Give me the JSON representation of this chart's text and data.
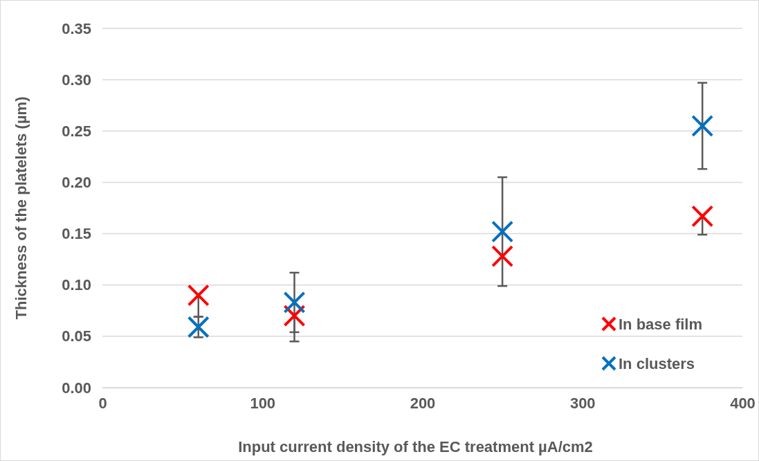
{
  "chart_data": {
    "type": "scatter",
    "xlabel": "Input current density of the EC treatment µA/cm2",
    "ylabel": "Thickness of the platelets  (µm)",
    "x": [
      60,
      120,
      250,
      375
    ],
    "series": [
      {
        "name": "In base film",
        "color": "#ff0000",
        "values": [
          0.09,
          0.07,
          0.128,
          0.167
        ],
        "errors": [
          [
            0.069,
            0.09
          ],
          [
            0.045,
            0.07
          ],
          null,
          [
            0.149,
            0.167
          ]
        ]
      },
      {
        "name": "In clusters",
        "color": "#0070c0",
        "values": [
          0.059,
          0.083,
          0.152,
          0.255
        ],
        "errors": [
          0.01,
          0.029,
          0.053,
          0.042
        ]
      }
    ],
    "xlim": [
      0,
      400
    ],
    "xticks": [
      0,
      100,
      200,
      300,
      400
    ],
    "ylim": [
      0,
      0.35
    ],
    "yticks": [
      {
        "value": 0,
        "label": "0.00"
      },
      {
        "value": 0.05,
        "label": "0.05"
      },
      {
        "value": 0.1,
        "label": "0.10"
      },
      {
        "value": 0.15,
        "label": "0.15"
      },
      {
        "value": 0.2,
        "label": "0.20"
      },
      {
        "value": 0.25,
        "label": "0.25"
      },
      {
        "value": 0.3,
        "label": "0.30"
      },
      {
        "value": 0.35,
        "label": "0.35"
      }
    ],
    "grid": "y",
    "legend": "bottom right",
    "marker": "cross"
  }
}
